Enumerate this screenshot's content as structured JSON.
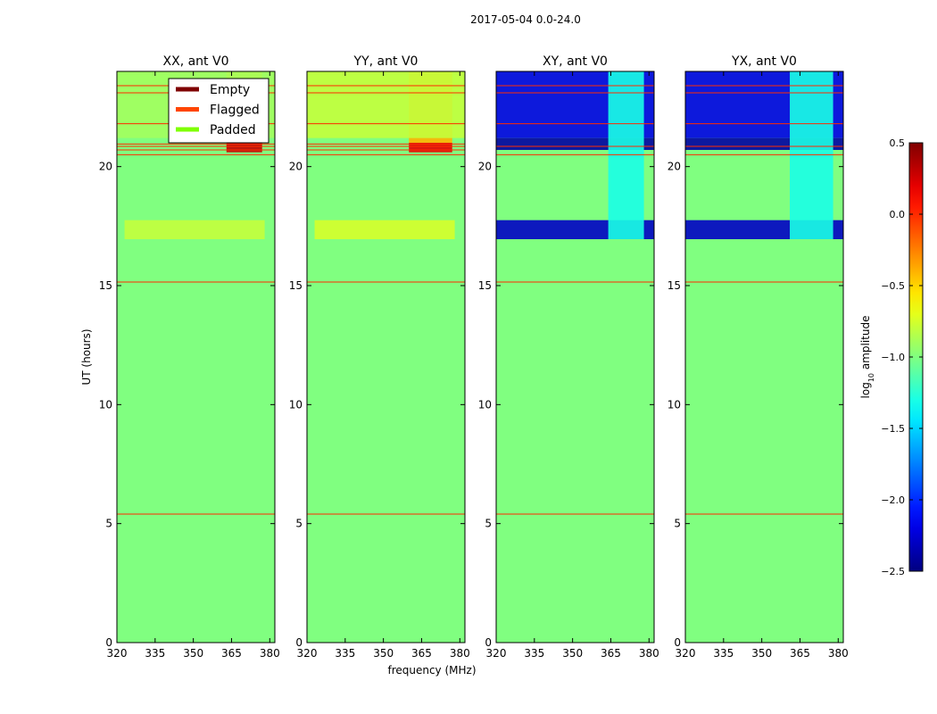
{
  "suptitle": "2017-05-04 0.0-24.0",
  "chart_data": [
    {
      "type": "heatmap",
      "title": "XX, ant V0",
      "xlabel": "",
      "ylabel": "UT (hours)",
      "xlim": [
        320,
        382
      ],
      "ylim": [
        0,
        24
      ],
      "xticks": [
        320,
        335,
        350,
        365,
        380
      ],
      "yticks": [
        0,
        5,
        10,
        15,
        20
      ],
      "base_log_amplitude": -1.0,
      "flag_lines_ut": [
        5.4,
        15.15,
        20.5,
        20.7,
        20.85,
        20.95,
        21.8,
        23.1,
        23.4
      ],
      "bands": [
        {
          "ut": [
            16.95,
            17.75
          ],
          "freq": [
            323,
            378
          ],
          "log_amplitude": -0.8
        },
        {
          "ut": [
            20.6,
            21.0
          ],
          "freq": [
            363,
            377
          ],
          "log_amplitude": 0.3
        },
        {
          "ut": [
            21.0,
            24.0
          ],
          "freq": [
            363,
            377
          ],
          "log_amplitude": -0.5
        },
        {
          "ut": [
            21.2,
            24.0
          ],
          "freq": [
            320,
            382
          ],
          "log_amplitude": -0.9
        }
      ],
      "legend": [
        "Empty",
        "Flagged",
        "Padded"
      ]
    },
    {
      "type": "heatmap",
      "title": "YY, ant V0",
      "xlabel": "frequency (MHz)",
      "ylabel": "",
      "xlim": [
        320,
        382
      ],
      "ylim": [
        0,
        24
      ],
      "xticks": [
        320,
        335,
        350,
        365,
        380
      ],
      "yticks": [
        0,
        5,
        10,
        15,
        20
      ],
      "base_log_amplitude": -1.0,
      "flag_lines_ut": [
        5.4,
        15.15,
        20.5,
        20.7,
        20.85,
        20.95,
        21.8,
        23.1,
        23.4
      ],
      "bands": [
        {
          "ut": [
            16.95,
            17.75
          ],
          "freq": [
            323,
            378
          ],
          "log_amplitude": -0.75
        },
        {
          "ut": [
            20.6,
            21.0
          ],
          "freq": [
            360,
            377
          ],
          "log_amplitude": 0.2
        },
        {
          "ut": [
            21.0,
            24.0
          ],
          "freq": [
            360,
            377
          ],
          "log_amplitude": -0.4
        },
        {
          "ut": [
            21.2,
            24.0
          ],
          "freq": [
            320,
            382
          ],
          "log_amplitude": -0.8
        }
      ]
    },
    {
      "type": "heatmap",
      "title": "XY, ant V0",
      "xlabel": "",
      "ylabel": "",
      "xlim": [
        320,
        382
      ],
      "ylim": [
        0,
        24
      ],
      "xticks": [
        320,
        335,
        350,
        365,
        380
      ],
      "yticks": [
        0,
        5,
        10,
        15,
        20
      ],
      "base_log_amplitude": -1.0,
      "flag_lines_ut": [
        5.4,
        15.15,
        20.5,
        20.85,
        21.8,
        23.1,
        23.4
      ],
      "bands": [
        {
          "ut": [
            16.95,
            17.75
          ],
          "freq": [
            320,
            382
          ],
          "log_amplitude": -2.3
        },
        {
          "ut": [
            20.7,
            21.2
          ],
          "freq": [
            320,
            382
          ],
          "log_amplitude": -2.4
        },
        {
          "ut": [
            21.2,
            24.0
          ],
          "freq": [
            320,
            382
          ],
          "log_amplitude": -2.2
        },
        {
          "ut": [
            16.95,
            24.0
          ],
          "freq": [
            364,
            378
          ],
          "log_amplitude": -1.3
        }
      ]
    },
    {
      "type": "heatmap",
      "title": "YX, ant V0",
      "xlabel": "",
      "ylabel": "",
      "xlim": [
        320,
        382
      ],
      "ylim": [
        0,
        24
      ],
      "xticks": [
        320,
        335,
        350,
        365,
        380
      ],
      "yticks": [
        0,
        5,
        10,
        15,
        20
      ],
      "base_log_amplitude": -1.0,
      "flag_lines_ut": [
        5.4,
        15.15,
        20.5,
        20.85,
        21.8,
        23.1,
        23.4
      ],
      "bands": [
        {
          "ut": [
            16.95,
            17.75
          ],
          "freq": [
            320,
            382
          ],
          "log_amplitude": -2.3
        },
        {
          "ut": [
            20.7,
            21.2
          ],
          "freq": [
            320,
            382
          ],
          "log_amplitude": -2.4
        },
        {
          "ut": [
            21.2,
            24.0
          ],
          "freq": [
            320,
            382
          ],
          "log_amplitude": -2.2
        },
        {
          "ut": [
            16.95,
            24.0
          ],
          "freq": [
            361,
            378
          ],
          "log_amplitude": -1.3
        }
      ]
    }
  ],
  "colorbar": {
    "label": "log10 amplitude",
    "range": [
      -2.5,
      0.5
    ],
    "ticks": [
      0.5,
      0.0,
      -0.5,
      -1.0,
      -1.5,
      -2.0,
      -2.5
    ],
    "tick_labels": [
      "0.5",
      "0.0",
      "−0.5",
      "−1.0",
      "−1.5",
      "−2.0",
      "−2.5"
    ]
  },
  "legend_entries": [
    {
      "label": "Empty",
      "color": "#7f0000"
    },
    {
      "label": "Flagged",
      "color": "#ff4500"
    },
    {
      "label": "Padded",
      "color": "#7fff00"
    }
  ],
  "colors": {
    "background_green": "#7fff7f",
    "flag_line": "#ff2a00"
  }
}
